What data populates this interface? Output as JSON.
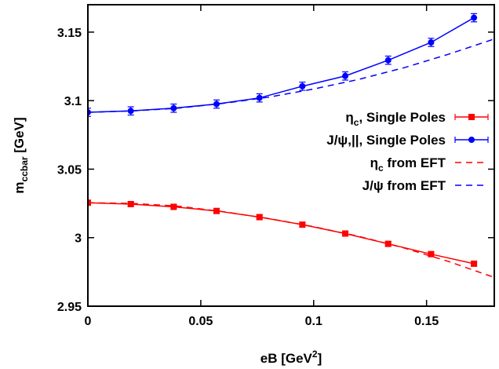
{
  "chart_data": {
    "type": "line",
    "xlabel": "eB [GeV",
    "xlabel_sup": "2",
    "xlabel_end": "]",
    "ylabel": "m",
    "ylabel_sub": "ccbar",
    "ylabel_end": " [GeV]",
    "xlim": [
      0,
      0.18
    ],
    "ylim": [
      2.95,
      3.17
    ],
    "x_ticks": [
      "0",
      "0.05",
      "0.1",
      "0.15"
    ],
    "y_ticks": [
      "2.95",
      "3",
      "3.05",
      "3.1",
      "3.15"
    ],
    "x_tick_values": [
      0,
      0.05,
      0.1,
      0.15
    ],
    "y_tick_values": [
      2.95,
      3.0,
      3.05,
      3.1,
      3.15
    ],
    "legend_position": "right",
    "series": [
      {
        "name": "η_c, Single Poles",
        "label_main": "η",
        "label_sub": "c",
        "label_rest": ", Single Poles",
        "color": "#ff0000",
        "marker": "square",
        "style": "solid",
        "x": [
          0.0,
          0.019,
          0.038,
          0.057,
          0.076,
          0.095,
          0.114,
          0.133,
          0.152,
          0.171
        ],
        "y": [
          3.0255,
          3.0245,
          3.0225,
          3.0195,
          3.015,
          3.0095,
          3.003,
          2.9955,
          2.988,
          2.981
        ],
        "err": [
          0.0015,
          0.0015,
          0.0015,
          0.0015,
          0.0015,
          0.0015,
          0.0015,
          0.0015,
          0.0015,
          0.0015
        ]
      },
      {
        "name": "J/ψ,||, Single Poles",
        "label_main": "J/ψ,||, Single Poles",
        "label_sub": "",
        "label_rest": "",
        "color": "#0000ff",
        "marker": "circle",
        "style": "solid",
        "x": [
          0.0,
          0.019,
          0.038,
          0.057,
          0.076,
          0.095,
          0.114,
          0.133,
          0.152,
          0.171
        ],
        "y": [
          3.0915,
          3.0925,
          3.0945,
          3.0975,
          3.102,
          3.1105,
          3.118,
          3.1295,
          3.1425,
          3.1605
        ],
        "err": [
          0.003,
          0.003,
          0.003,
          0.003,
          0.003,
          0.003,
          0.003,
          0.003,
          0.003,
          0.003
        ]
      },
      {
        "name": "η_c from EFT",
        "label_main": "η",
        "label_sub": "c",
        "label_rest": " from EFT",
        "color": "#ff0000",
        "marker": "none",
        "style": "dashed",
        "x": [
          0.0,
          0.02,
          0.04,
          0.06,
          0.08,
          0.1,
          0.12,
          0.14,
          0.16,
          0.18
        ],
        "y": [
          3.0255,
          3.025,
          3.023,
          3.019,
          3.014,
          3.008,
          3.001,
          2.9925,
          2.9825,
          2.971
        ]
      },
      {
        "name": "J/ψ from EFT",
        "label_main": "J/ψ from EFT",
        "label_sub": "",
        "label_rest": "",
        "color": "#0000ff",
        "marker": "none",
        "style": "dashed",
        "x": [
          0.0,
          0.02,
          0.04,
          0.06,
          0.08,
          0.1,
          0.12,
          0.14,
          0.16,
          0.18
        ],
        "y": [
          3.0915,
          3.0925,
          3.0945,
          3.098,
          3.1025,
          3.1085,
          3.1155,
          3.124,
          3.134,
          3.145
        ]
      }
    ]
  }
}
